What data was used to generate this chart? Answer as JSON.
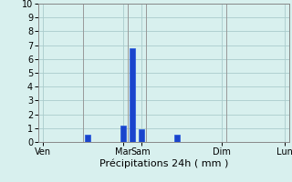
{
  "xlabel": "Précipitations 24h ( mm )",
  "ylim": [
    0,
    10
  ],
  "yticks": [
    0,
    1,
    2,
    3,
    4,
    5,
    6,
    7,
    8,
    9,
    10
  ],
  "background_color": "#d8f0ee",
  "grid_color": "#aacccc",
  "bar_color": "#1a44cc",
  "bar_edge_color": "#2255dd",
  "bar_values": [
    0,
    0,
    0,
    0,
    0,
    0.5,
    0,
    0,
    0,
    1.2,
    6.8,
    0.9,
    0,
    0,
    0,
    0.5,
    0,
    0,
    0,
    0,
    0,
    0,
    0,
    0,
    0,
    0,
    0,
    0
  ],
  "num_bars": 28,
  "tick_positions": [
    0,
    9,
    11,
    20,
    27
  ],
  "tick_labels": [
    "Ven",
    "Mar",
    "Sam",
    "Dim",
    "Lun"
  ],
  "vline_positions": [
    4.5,
    9.5,
    11.5,
    20.5
  ],
  "bar_width": 0.6
}
